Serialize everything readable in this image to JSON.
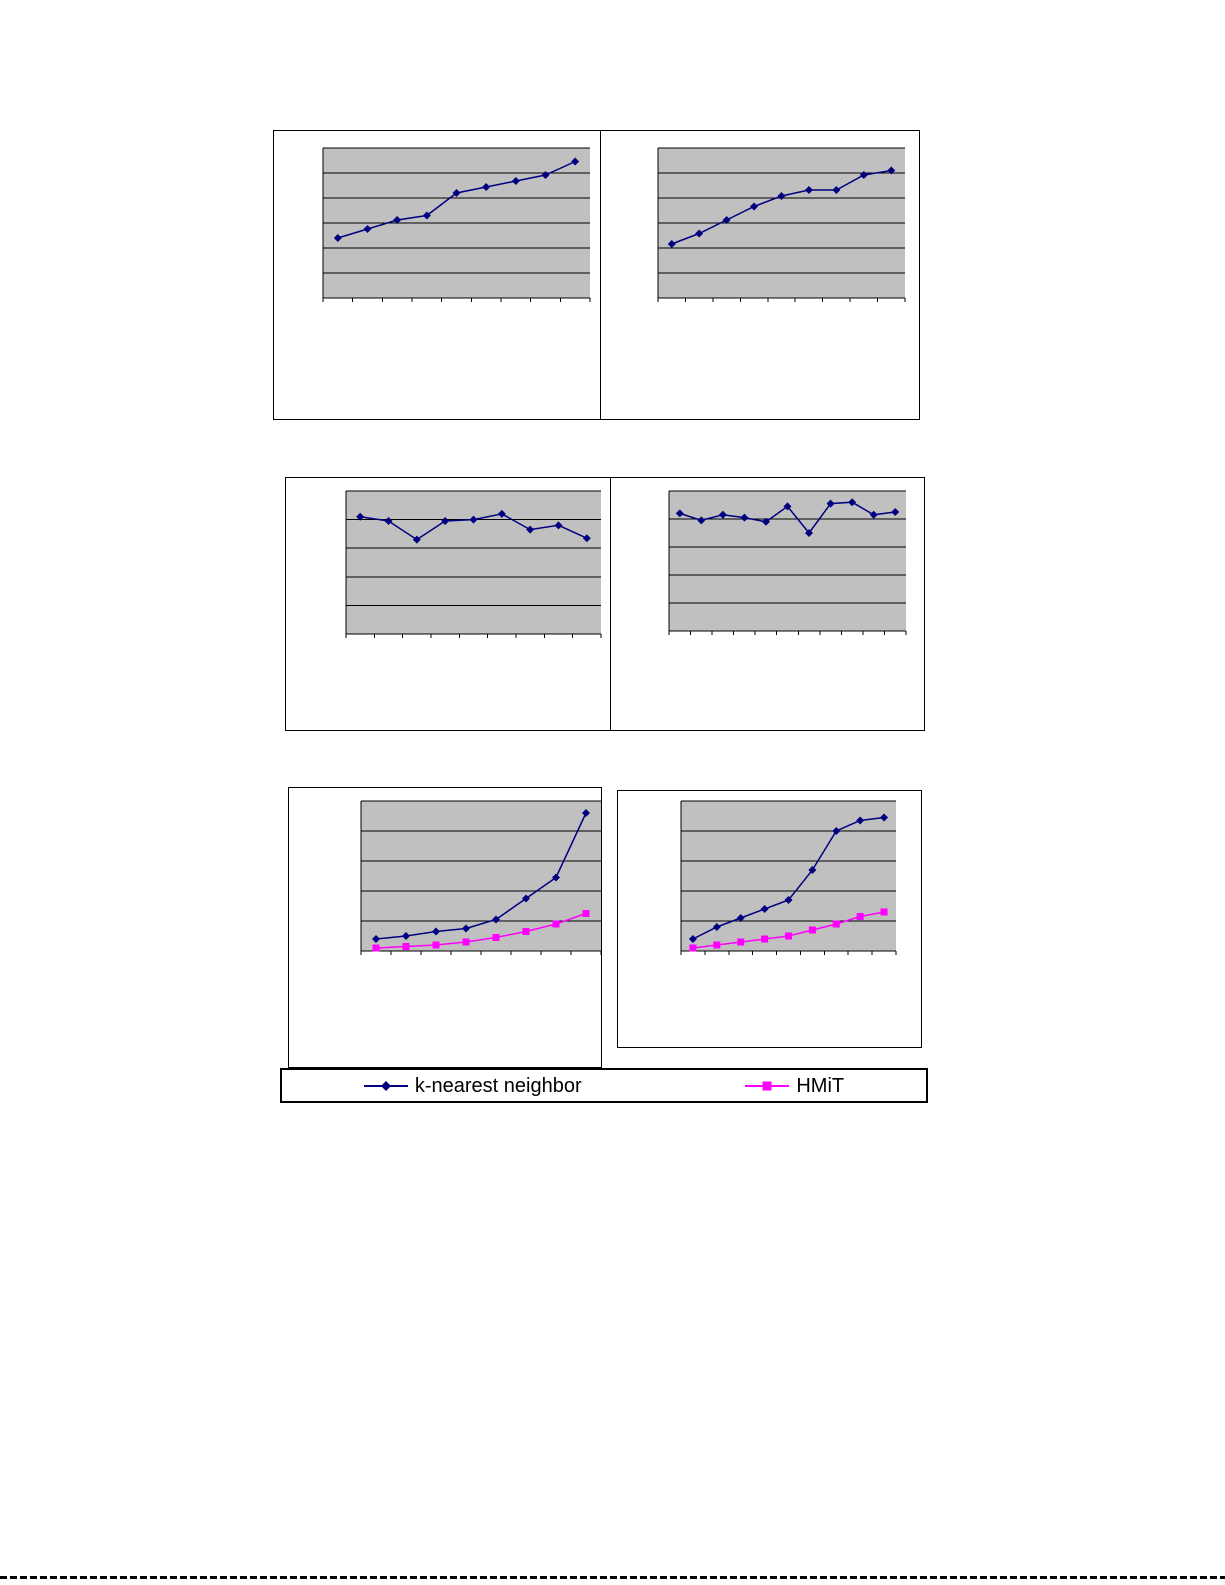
{
  "page": {
    "background": "#ffffff"
  },
  "colors": {
    "plot_background": "#c0c0c0",
    "axis_and_grid": "#000000",
    "series_knn": "#000080",
    "series_hmit": "#ff00ff"
  },
  "legend": {
    "items": [
      {
        "label": "k-nearest neighbor",
        "marker": "diamond",
        "color": "#000080"
      },
      {
        "label": "HMiT",
        "marker": "square",
        "color": "#ff00ff"
      }
    ]
  },
  "chart_data": [
    {
      "id": "top-left",
      "type": "line",
      "title": "",
      "xlabel": "",
      "ylabel": "",
      "grid": true,
      "grid_bands": 6,
      "ylim": [
        0,
        100
      ],
      "x": [
        1,
        2,
        3,
        4,
        5,
        6,
        7,
        8,
        9
      ],
      "series": [
        {
          "name": "k-nearest neighbor",
          "color": "#000080",
          "marker": "diamond",
          "values": [
            40,
            46,
            52,
            55,
            70,
            74,
            78,
            82,
            91
          ]
        }
      ]
    },
    {
      "id": "top-right",
      "type": "line",
      "title": "",
      "xlabel": "",
      "ylabel": "",
      "grid": true,
      "grid_bands": 6,
      "ylim": [
        0,
        100
      ],
      "x": [
        1,
        2,
        3,
        4,
        5,
        6,
        7,
        8,
        9
      ],
      "series": [
        {
          "name": "k-nearest neighbor",
          "color": "#000080",
          "marker": "diamond",
          "values": [
            36,
            43,
            52,
            61,
            68,
            72,
            72,
            82,
            85
          ]
        }
      ]
    },
    {
      "id": "middle-left",
      "type": "line",
      "title": "",
      "xlabel": "",
      "ylabel": "",
      "grid": true,
      "grid_bands": 5,
      "ylim": [
        0,
        100
      ],
      "x": [
        1,
        2,
        3,
        4,
        5,
        6,
        7,
        8,
        9
      ],
      "series": [
        {
          "name": "k-nearest neighbor",
          "color": "#000080",
          "marker": "diamond",
          "values": [
            82,
            79,
            66,
            79,
            80,
            84,
            73,
            76,
            67
          ]
        }
      ]
    },
    {
      "id": "middle-right",
      "type": "line",
      "title": "",
      "xlabel": "",
      "ylabel": "",
      "grid": true,
      "grid_bands": 5,
      "ylim": [
        0,
        100
      ],
      "x": [
        1,
        2,
        3,
        4,
        5,
        6,
        7,
        8,
        9,
        10,
        11
      ],
      "series": [
        {
          "name": "k-nearest neighbor",
          "color": "#000080",
          "marker": "diamond",
          "values": [
            84,
            79,
            83,
            81,
            78,
            89,
            70,
            91,
            92,
            83,
            85
          ]
        }
      ]
    },
    {
      "id": "bottom-left",
      "type": "line",
      "title": "",
      "xlabel": "",
      "ylabel": "",
      "grid": true,
      "grid_bands": 5,
      "ylim": [
        0,
        100
      ],
      "x": [
        1,
        2,
        3,
        4,
        5,
        6,
        7,
        8
      ],
      "series": [
        {
          "name": "k-nearest neighbor",
          "color": "#000080",
          "marker": "diamond",
          "values": [
            8,
            10,
            13,
            15,
            21,
            35,
            49,
            92
          ]
        },
        {
          "name": "HMiT",
          "color": "#ff00ff",
          "marker": "square",
          "values": [
            2,
            3,
            4,
            6,
            9,
            13,
            18,
            25
          ]
        }
      ]
    },
    {
      "id": "bottom-right",
      "type": "line",
      "title": "",
      "xlabel": "",
      "ylabel": "",
      "grid": true,
      "grid_bands": 5,
      "ylim": [
        0,
        100
      ],
      "x": [
        1,
        2,
        3,
        4,
        5,
        6,
        7,
        8,
        9
      ],
      "series": [
        {
          "name": "k-nearest neighbor",
          "color": "#000080",
          "marker": "diamond",
          "values": [
            8,
            16,
            22,
            28,
            34,
            54,
            80,
            87,
            89
          ]
        },
        {
          "name": "HMiT",
          "color": "#ff00ff",
          "marker": "square",
          "values": [
            2,
            4,
            6,
            8,
            10,
            14,
            18,
            23,
            26
          ]
        }
      ]
    }
  ]
}
